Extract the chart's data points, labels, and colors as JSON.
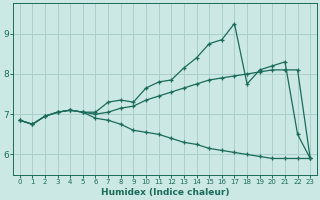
{
  "xlabel": "Humidex (Indice chaleur)",
  "x_values": [
    0,
    1,
    2,
    3,
    4,
    5,
    6,
    7,
    8,
    9,
    10,
    11,
    12,
    13,
    14,
    15,
    16,
    17,
    18,
    19,
    20,
    21,
    22,
    23
  ],
  "line1_y": [
    6.85,
    6.75,
    6.95,
    7.05,
    7.1,
    7.05,
    7.05,
    7.3,
    7.35,
    7.3,
    7.65,
    7.8,
    7.85,
    8.15,
    8.4,
    8.75,
    8.85,
    9.25,
    7.75,
    8.1,
    8.2,
    8.3,
    6.5,
    5.9
  ],
  "line2_y": [
    6.85,
    6.75,
    6.95,
    7.05,
    7.1,
    7.05,
    6.9,
    6.85,
    6.75,
    6.6,
    6.55,
    6.5,
    6.4,
    6.3,
    6.25,
    6.15,
    6.1,
    6.05,
    6.0,
    5.95,
    5.9,
    5.9,
    5.9,
    5.9
  ],
  "line3_y": [
    6.85,
    6.75,
    6.95,
    7.05,
    7.1,
    7.05,
    7.0,
    7.05,
    7.15,
    7.2,
    7.35,
    7.45,
    7.55,
    7.65,
    7.75,
    7.85,
    7.9,
    7.95,
    8.0,
    8.05,
    8.1,
    8.1,
    8.1,
    5.9
  ],
  "line_color": "#1a6b5a",
  "bg_color": "#cce8e4",
  "grid_color": "#aacfca",
  "ylim": [
    5.5,
    9.75
  ],
  "xlim": [
    -0.5,
    23.5
  ],
  "yticks": [
    6,
    7,
    8,
    9
  ],
  "xticks": [
    0,
    1,
    2,
    3,
    4,
    5,
    6,
    7,
    8,
    9,
    10,
    11,
    12,
    13,
    14,
    15,
    16,
    17,
    18,
    19,
    20,
    21,
    22,
    23
  ]
}
